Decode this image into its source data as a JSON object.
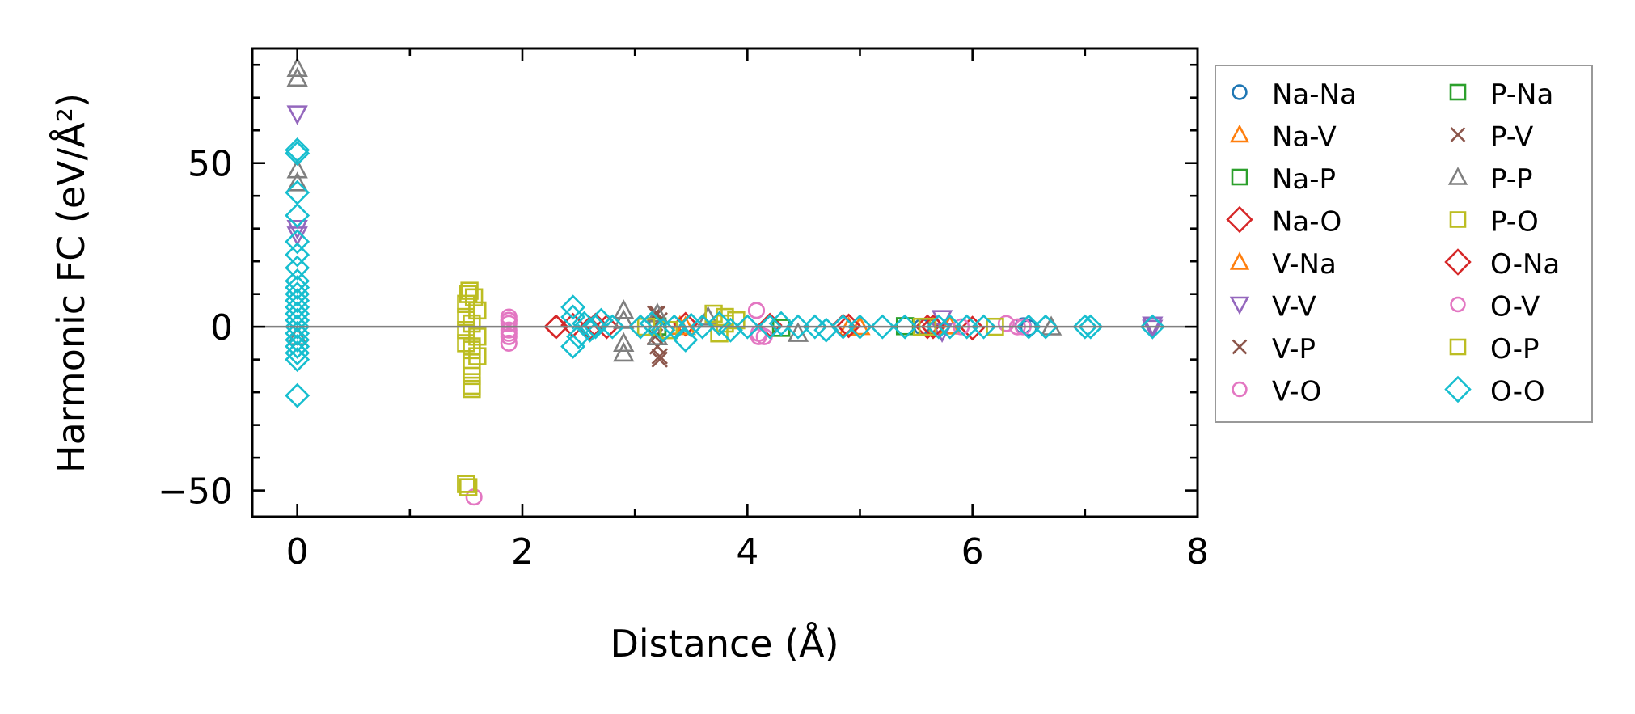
{
  "chart_data": {
    "type": "scatter",
    "title": "",
    "xlabel": "Distance (Å)",
    "ylabel": "Harmonic FC (eV/Å²)",
    "xlim": [
      -0.4,
      8.0
    ],
    "ylim": [
      -58,
      85
    ],
    "xticks": [
      0,
      2,
      4,
      6,
      8
    ],
    "yticks": [
      -50,
      0,
      50
    ],
    "xtick_labels": [
      "0",
      "2",
      "4",
      "6",
      "8"
    ],
    "ytick_labels": [
      "−50",
      "0",
      "50"
    ],
    "zero_line": true,
    "grid": false,
    "legend_placement": "outside-right",
    "series": [
      {
        "name": "Na-Na",
        "color": "#1f77b4",
        "marker": "circle",
        "points": [
          [
            5.55,
            0
          ],
          [
            6.45,
            0.3
          ],
          [
            6.5,
            -0.3
          ]
        ]
      },
      {
        "name": "Na-V",
        "color": "#ff7f0e",
        "marker": "triangle-up",
        "points": [
          [
            3.4,
            0.2
          ],
          [
            4.9,
            -0.2
          ],
          [
            5.8,
            0.3
          ]
        ]
      },
      {
        "name": "Na-P",
        "color": "#2ca02c",
        "marker": "square",
        "points": [
          [
            3.2,
            0.1
          ],
          [
            4.3,
            -0.3
          ],
          [
            5.4,
            0.2
          ]
        ]
      },
      {
        "name": "Na-O",
        "color": "#d62728",
        "marker": "diamond",
        "points": [
          [
            2.3,
            0
          ],
          [
            2.45,
            0.5
          ],
          [
            2.6,
            -0.5
          ],
          [
            2.75,
            0
          ],
          [
            3.45,
            0.8
          ],
          [
            4.2,
            0.5
          ],
          [
            4.85,
            0.2
          ],
          [
            5.6,
            0
          ],
          [
            6.0,
            -0.4
          ]
        ]
      },
      {
        "name": "V-Na",
        "color": "#ff7f0e",
        "marker": "triangle-up",
        "points": [
          [
            3.45,
            0.1
          ],
          [
            5.0,
            0.1
          ]
        ]
      },
      {
        "name": "V-V",
        "color": "#9467bd",
        "marker": "triangle-down",
        "points": [
          [
            0,
            65
          ],
          [
            0,
            30
          ],
          [
            0,
            28
          ],
          [
            5.73,
            2.5
          ],
          [
            5.73,
            -1.5
          ],
          [
            7.6,
            0.5
          ],
          [
            7.6,
            -0.5
          ]
        ]
      },
      {
        "name": "V-P",
        "color": "#8c564b",
        "marker": "x",
        "points": [
          [
            3.18,
            4
          ],
          [
            3.22,
            2
          ],
          [
            3.2,
            -6
          ],
          [
            3.22,
            -10
          ],
          [
            3.18,
            -3
          ]
        ]
      },
      {
        "name": "V-O",
        "color": "#e377c2",
        "marker": "circle",
        "points": [
          [
            1.88,
            3
          ],
          [
            1.88,
            2
          ],
          [
            1.88,
            1
          ],
          [
            1.88,
            -1
          ],
          [
            1.88,
            -3
          ],
          [
            1.88,
            -5
          ],
          [
            1.57,
            -52
          ],
          [
            4.08,
            5
          ],
          [
            4.1,
            -2
          ],
          [
            4.15,
            -3
          ],
          [
            5.9,
            0
          ],
          [
            6.3,
            1
          ],
          [
            6.45,
            0
          ]
        ]
      },
      {
        "name": "P-Na",
        "color": "#2ca02c",
        "marker": "square",
        "points": [
          [
            3.2,
            0.1
          ],
          [
            4.3,
            -0.3
          ]
        ]
      },
      {
        "name": "P-V",
        "color": "#8c564b",
        "marker": "x",
        "points": [
          [
            3.2,
            4
          ],
          [
            3.22,
            -9
          ]
        ]
      },
      {
        "name": "P-P",
        "color": "#7f7f7f",
        "marker": "triangle-up",
        "points": [
          [
            0,
            79
          ],
          [
            0,
            76
          ],
          [
            0,
            48
          ],
          [
            0,
            44
          ],
          [
            0,
            -3
          ],
          [
            2.9,
            5
          ],
          [
            2.9,
            2
          ],
          [
            2.9,
            -5
          ],
          [
            2.9,
            -8
          ],
          [
            3.2,
            4
          ],
          [
            3.2,
            -3
          ],
          [
            3.65,
            3
          ],
          [
            4.45,
            -2
          ],
          [
            6.7,
            0
          ]
        ]
      },
      {
        "name": "P-O",
        "color": "#bcbd22",
        "marker": "square",
        "points": [
          [
            1.53,
            11
          ],
          [
            1.57,
            9
          ],
          [
            1.5,
            7
          ],
          [
            1.6,
            5
          ],
          [
            1.5,
            3
          ],
          [
            1.55,
            1
          ],
          [
            1.5,
            -1
          ],
          [
            1.6,
            -3
          ],
          [
            1.5,
            -5
          ],
          [
            1.55,
            -7
          ],
          [
            1.6,
            -9
          ],
          [
            1.55,
            -12
          ],
          [
            1.55,
            -15
          ],
          [
            1.55,
            -19
          ],
          [
            1.5,
            -48
          ],
          [
            1.52,
            -49
          ],
          [
            3.1,
            0
          ],
          [
            3.3,
            -1
          ],
          [
            3.7,
            4
          ],
          [
            3.8,
            3
          ],
          [
            3.9,
            2
          ],
          [
            3.75,
            -2
          ],
          [
            5.55,
            0
          ],
          [
            6.2,
            0
          ]
        ]
      },
      {
        "name": "O-Na",
        "color": "#d62728",
        "marker": "diamond",
        "points": [
          [
            2.3,
            0
          ],
          [
            2.65,
            0.5
          ],
          [
            4.9,
            0.3
          ],
          [
            5.65,
            0
          ]
        ]
      },
      {
        "name": "O-V",
        "color": "#e377c2",
        "marker": "circle",
        "points": [
          [
            1.88,
            2
          ],
          [
            1.88,
            -2
          ],
          [
            4.08,
            5
          ],
          [
            4.1,
            -3
          ],
          [
            6.4,
            0
          ]
        ]
      },
      {
        "name": "O-P",
        "color": "#bcbd22",
        "marker": "square",
        "points": [
          [
            1.52,
            10
          ],
          [
            1.55,
            -6
          ],
          [
            1.55,
            -18
          ],
          [
            1.5,
            -48
          ],
          [
            3.8,
            1
          ],
          [
            5.6,
            0
          ]
        ]
      },
      {
        "name": "O-O",
        "color": "#17becf",
        "marker": "diamond",
        "points": [
          [
            0,
            54
          ],
          [
            0,
            53
          ],
          [
            0,
            41
          ],
          [
            0,
            34
          ],
          [
            0,
            26
          ],
          [
            0,
            22
          ],
          [
            0,
            18
          ],
          [
            0,
            14
          ],
          [
            0,
            12
          ],
          [
            0,
            10
          ],
          [
            0,
            8
          ],
          [
            0,
            6
          ],
          [
            0,
            4
          ],
          [
            0,
            2
          ],
          [
            0,
            0
          ],
          [
            0,
            -2
          ],
          [
            0,
            -4
          ],
          [
            0,
            -6
          ],
          [
            0,
            -8
          ],
          [
            0,
            -10
          ],
          [
            0,
            -21
          ],
          [
            2.45,
            6
          ],
          [
            2.45,
            3
          ],
          [
            2.5,
            -3
          ],
          [
            2.45,
            -6
          ],
          [
            2.55,
            1
          ],
          [
            2.6,
            -1
          ],
          [
            2.65,
            0
          ],
          [
            2.7,
            2
          ],
          [
            2.8,
            0
          ],
          [
            3.05,
            0
          ],
          [
            3.15,
            1
          ],
          [
            3.25,
            -1
          ],
          [
            3.35,
            0
          ],
          [
            3.5,
            0.5
          ],
          [
            3.45,
            -4
          ],
          [
            3.6,
            0
          ],
          [
            3.75,
            1
          ],
          [
            3.85,
            -1
          ],
          [
            4.0,
            0
          ],
          [
            4.2,
            0
          ],
          [
            4.3,
            1
          ],
          [
            4.45,
            0
          ],
          [
            4.6,
            0
          ],
          [
            4.7,
            -1
          ],
          [
            4.85,
            0
          ],
          [
            5.0,
            0
          ],
          [
            5.2,
            0
          ],
          [
            5.4,
            0
          ],
          [
            5.7,
            0
          ],
          [
            5.8,
            0
          ],
          [
            5.95,
            0
          ],
          [
            6.1,
            0
          ],
          [
            6.5,
            0
          ],
          [
            6.65,
            0
          ],
          [
            7.0,
            0
          ],
          [
            7.05,
            0
          ],
          [
            7.6,
            0
          ]
        ]
      }
    ]
  }
}
